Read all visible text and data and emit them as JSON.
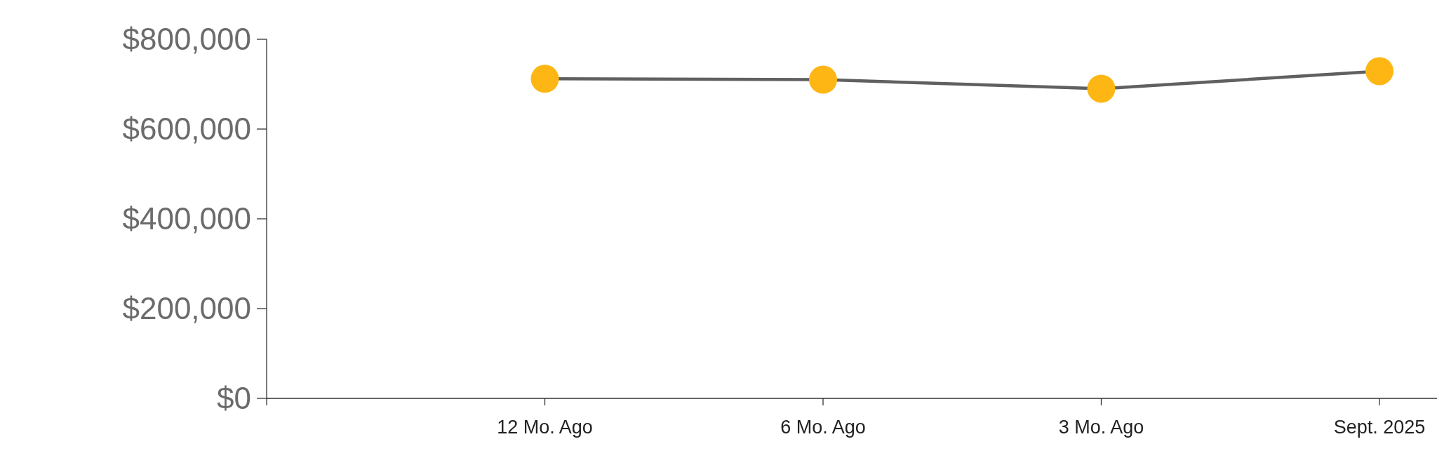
{
  "chart_data": {
    "type": "line",
    "categories": [
      null,
      "12 Mo. Ago",
      "6 Mo. Ago",
      "3 Mo. Ago",
      "Sept. 2025"
    ],
    "series": [
      {
        "color": "#606060",
        "values": [
          null,
          712000,
          710000,
          690000,
          729000
        ]
      }
    ],
    "marker": "circle",
    "ylim": [
      0,
      800000
    ],
    "yticks": [
      {
        "value": 0,
        "label": "$0"
      },
      {
        "value": 200000,
        "label": "$200,000"
      },
      {
        "value": 400000,
        "label": "$400,000"
      },
      {
        "value": 600000,
        "label": "$600,000"
      },
      {
        "value": 800000,
        "label": "$800,000"
      }
    ],
    "grid": false
  }
}
